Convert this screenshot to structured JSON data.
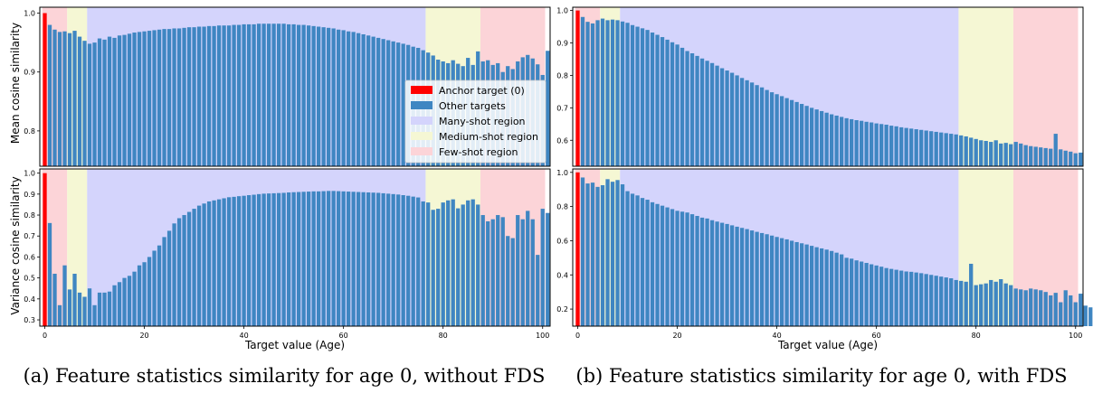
{
  "chart_data": [
    {
      "type": "bar",
      "panel": "a-top",
      "ylabel": "Mean cosine similarity",
      "xlabel": "",
      "xlim": [
        0,
        100
      ],
      "ylim": [
        0.74,
        1.01
      ],
      "yticks": [
        "1.0",
        "0.9",
        "0.8"
      ],
      "ytick_values": [
        1.0,
        0.9,
        0.8
      ],
      "xticks": [],
      "values": [
        1.0,
        0.98,
        0.972,
        0.968,
        0.969,
        0.966,
        0.97,
        0.96,
        0.953,
        0.948,
        0.95,
        0.957,
        0.955,
        0.96,
        0.958,
        0.962,
        0.963,
        0.965,
        0.967,
        0.968,
        0.969,
        0.97,
        0.971,
        0.972,
        0.973,
        0.973,
        0.974,
        0.974,
        0.975,
        0.976,
        0.976,
        0.977,
        0.977,
        0.978,
        0.978,
        0.979,
        0.979,
        0.979,
        0.98,
        0.98,
        0.981,
        0.981,
        0.981,
        0.982,
        0.982,
        0.982,
        0.982,
        0.982,
        0.982,
        0.981,
        0.981,
        0.98,
        0.98,
        0.979,
        0.978,
        0.977,
        0.976,
        0.975,
        0.974,
        0.972,
        0.971,
        0.969,
        0.968,
        0.966,
        0.964,
        0.962,
        0.96,
        0.958,
        0.956,
        0.954,
        0.952,
        0.95,
        0.948,
        0.946,
        0.943,
        0.941,
        0.937,
        0.933,
        0.928,
        0.921,
        0.918,
        0.915,
        0.92,
        0.914,
        0.91,
        0.924,
        0.912,
        0.935,
        0.918,
        0.92,
        0.912,
        0.915,
        0.9,
        0.91,
        0.905,
        0.918,
        0.925,
        0.929,
        0.923,
        0.913,
        0.895,
        0.936
      ]
    },
    {
      "type": "bar",
      "panel": "a-bottom",
      "ylabel": "Variance cosine similarity",
      "xlabel": "Target value (Age)",
      "xlim": [
        0,
        100
      ],
      "ylim": [
        0.27,
        1.02
      ],
      "yticks": [
        "1.0",
        "0.9",
        "0.8",
        "0.7",
        "0.6",
        "0.5",
        "0.4",
        "0.3"
      ],
      "ytick_values": [
        1.0,
        0.9,
        0.8,
        0.7,
        0.6,
        0.5,
        0.4,
        0.3
      ],
      "xticks": [
        "0",
        "20",
        "40",
        "60",
        "80",
        "100"
      ],
      "xtick_values": [
        0,
        20,
        40,
        60,
        80,
        100
      ],
      "values": [
        1.0,
        0.762,
        0.52,
        0.37,
        0.56,
        0.445,
        0.52,
        0.43,
        0.41,
        0.45,
        0.37,
        0.43,
        0.43,
        0.435,
        0.465,
        0.48,
        0.5,
        0.51,
        0.53,
        0.56,
        0.575,
        0.6,
        0.63,
        0.655,
        0.695,
        0.725,
        0.76,
        0.785,
        0.8,
        0.815,
        0.83,
        0.845,
        0.855,
        0.865,
        0.87,
        0.875,
        0.88,
        0.885,
        0.887,
        0.89,
        0.892,
        0.895,
        0.897,
        0.9,
        0.902,
        0.903,
        0.904,
        0.905,
        0.906,
        0.908,
        0.909,
        0.91,
        0.911,
        0.912,
        0.913,
        0.913,
        0.914,
        0.915,
        0.915,
        0.914,
        0.913,
        0.912,
        0.911,
        0.91,
        0.909,
        0.908,
        0.907,
        0.906,
        0.904,
        0.902,
        0.9,
        0.898,
        0.895,
        0.892,
        0.888,
        0.884,
        0.865,
        0.86,
        0.825,
        0.83,
        0.86,
        0.87,
        0.875,
        0.832,
        0.85,
        0.87,
        0.875,
        0.85,
        0.8,
        0.77,
        0.78,
        0.8,
        0.79,
        0.7,
        0.69,
        0.8,
        0.78,
        0.82,
        0.78,
        0.61,
        0.83,
        0.81
      ]
    },
    {
      "type": "bar",
      "panel": "b-top",
      "ylabel": "",
      "xlabel": "",
      "xlim": [
        0,
        100
      ],
      "ylim": [
        0.52,
        1.01
      ],
      "yticks": [
        "1.0",
        "0.9",
        "0.8",
        "0.7",
        "0.6"
      ],
      "ytick_values": [
        1.0,
        0.9,
        0.8,
        0.7,
        0.6
      ],
      "xticks": [],
      "values": [
        1.0,
        0.98,
        0.965,
        0.96,
        0.97,
        0.975,
        0.97,
        0.972,
        0.97,
        0.966,
        0.962,
        0.955,
        0.95,
        0.945,
        0.94,
        0.932,
        0.925,
        0.918,
        0.91,
        0.902,
        0.895,
        0.885,
        0.875,
        0.868,
        0.86,
        0.852,
        0.845,
        0.838,
        0.83,
        0.822,
        0.815,
        0.808,
        0.8,
        0.792,
        0.785,
        0.778,
        0.77,
        0.763,
        0.755,
        0.748,
        0.742,
        0.736,
        0.73,
        0.724,
        0.718,
        0.712,
        0.706,
        0.7,
        0.695,
        0.69,
        0.685,
        0.68,
        0.676,
        0.672,
        0.668,
        0.665,
        0.662,
        0.66,
        0.657,
        0.655,
        0.652,
        0.65,
        0.648,
        0.645,
        0.643,
        0.64,
        0.638,
        0.636,
        0.634,
        0.632,
        0.63,
        0.628,
        0.626,
        0.624,
        0.622,
        0.62,
        0.618,
        0.615,
        0.612,
        0.608,
        0.604,
        0.6,
        0.598,
        0.595,
        0.6,
        0.59,
        0.592,
        0.588,
        0.595,
        0.59,
        0.585,
        0.582,
        0.58,
        0.578,
        0.576,
        0.574,
        0.62,
        0.572,
        0.568,
        0.565,
        0.56,
        0.562
      ]
    },
    {
      "type": "bar",
      "panel": "b-bottom",
      "ylabel": "",
      "xlabel": "Target value (Age)",
      "xlim": [
        0,
        100
      ],
      "ylim": [
        0.1,
        1.02
      ],
      "yticks": [
        "1.0",
        "0.8",
        "0.6",
        "0.4",
        "0.2"
      ],
      "ytick_values": [
        1.0,
        0.8,
        0.6,
        0.4,
        0.2
      ],
      "xticks": [
        "0",
        "20",
        "40",
        "60",
        "80",
        "100"
      ],
      "xtick_values": [
        0,
        20,
        40,
        60,
        80,
        100
      ],
      "values": [
        1.0,
        0.97,
        0.935,
        0.94,
        0.915,
        0.925,
        0.96,
        0.945,
        0.955,
        0.93,
        0.89,
        0.875,
        0.865,
        0.85,
        0.84,
        0.825,
        0.815,
        0.805,
        0.795,
        0.785,
        0.775,
        0.77,
        0.765,
        0.755,
        0.745,
        0.735,
        0.73,
        0.72,
        0.712,
        0.705,
        0.698,
        0.69,
        0.682,
        0.675,
        0.668,
        0.66,
        0.652,
        0.645,
        0.638,
        0.63,
        0.622,
        0.615,
        0.608,
        0.6,
        0.592,
        0.585,
        0.578,
        0.57,
        0.562,
        0.555,
        0.548,
        0.54,
        0.53,
        0.52,
        0.5,
        0.495,
        0.485,
        0.478,
        0.47,
        0.462,
        0.455,
        0.448,
        0.44,
        0.435,
        0.43,
        0.425,
        0.42,
        0.418,
        0.414,
        0.41,
        0.405,
        0.4,
        0.395,
        0.39,
        0.385,
        0.38,
        0.37,
        0.365,
        0.36,
        0.465,
        0.34,
        0.345,
        0.35,
        0.37,
        0.36,
        0.375,
        0.35,
        0.34,
        0.32,
        0.315,
        0.31,
        0.32,
        0.315,
        0.31,
        0.3,
        0.28,
        0.295,
        0.24,
        0.31,
        0.28,
        0.24,
        0.29,
        0.22,
        0.21
      ]
    }
  ],
  "region_ranges": {
    "few_shot_left": [
      0,
      5
    ],
    "medium_shot_left": [
      5,
      9
    ],
    "many_shot": [
      9,
      77
    ],
    "medium_shot_right": [
      77,
      88
    ],
    "few_shot_right": [
      88,
      101
    ]
  },
  "colors": {
    "anchor": "#ff0000",
    "other": "#3f86c2",
    "many_shot": "#d4d4fc",
    "medium_shot": "#f5f7d4",
    "few_shot": "#fcd4d8"
  },
  "legend": {
    "anchor": "Anchor target (0)",
    "other": "Other targets",
    "many": "Many-shot region",
    "medium": "Medium-shot region",
    "few": "Few-shot region"
  },
  "captions": {
    "a": "(a) Feature statistics similarity for age 0, without FDS",
    "b": "(b) Feature statistics similarity for age 0, with FDS"
  }
}
